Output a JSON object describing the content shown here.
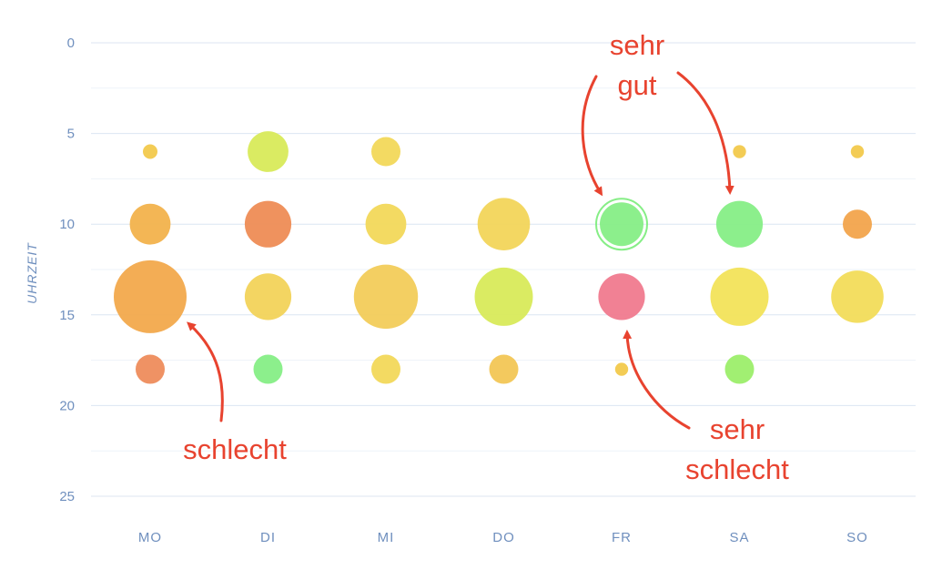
{
  "chart_data": {
    "type": "scatter",
    "subtype": "bubble",
    "title": "",
    "xlabel": "",
    "ylabel": "UHRZEIT",
    "categories": [
      "MO",
      "DI",
      "MI",
      "DO",
      "FR",
      "SA",
      "SO"
    ],
    "y_ticks": [
      "0",
      "5",
      "10",
      "15",
      "20",
      "25"
    ],
    "ylim": [
      0,
      25
    ],
    "y_inverted": true,
    "grid": true,
    "points": [
      {
        "day": "MO",
        "hour": 6,
        "size": 1.0,
        "color": "#f2c94c"
      },
      {
        "day": "MO",
        "hour": 10,
        "size": 2.8,
        "color": "#f2b24c"
      },
      {
        "day": "MO",
        "hour": 14,
        "size": 5.0,
        "color": "#f2a94c"
      },
      {
        "day": "MO",
        "hour": 18,
        "size": 2.0,
        "color": "#ee8c5c"
      },
      {
        "day": "DI",
        "hour": 6,
        "size": 2.8,
        "color": "#d8ea5a"
      },
      {
        "day": "DI",
        "hour": 10,
        "size": 3.2,
        "color": "#ee8c55"
      },
      {
        "day": "DI",
        "hour": 14,
        "size": 3.2,
        "color": "#f2d35a"
      },
      {
        "day": "DI",
        "hour": 18,
        "size": 2.0,
        "color": "#86ee86"
      },
      {
        "day": "MI",
        "hour": 6,
        "size": 2.0,
        "color": "#f2d85a"
      },
      {
        "day": "MI",
        "hour": 10,
        "size": 2.8,
        "color": "#f2d85a"
      },
      {
        "day": "MI",
        "hour": 14,
        "size": 4.4,
        "color": "#f2cc5a"
      },
      {
        "day": "MI",
        "hour": 18,
        "size": 2.0,
        "color": "#f2d85a"
      },
      {
        "day": "DO",
        "hour": 10,
        "size": 3.6,
        "color": "#f2d55a"
      },
      {
        "day": "DO",
        "hour": 14,
        "size": 4.0,
        "color": "#d8ea5a"
      },
      {
        "day": "DO",
        "hour": 18,
        "size": 2.0,
        "color": "#f2c655"
      },
      {
        "day": "FR",
        "hour": 10,
        "size": 3.0,
        "color": "#86ee86",
        "highlight": true
      },
      {
        "day": "FR",
        "hour": 14,
        "size": 3.2,
        "color": "#f07a8e"
      },
      {
        "day": "FR",
        "hour": 18,
        "size": 0.9,
        "color": "#f2c94c"
      },
      {
        "day": "SA",
        "hour": 6,
        "size": 0.9,
        "color": "#f2c94c"
      },
      {
        "day": "SA",
        "hour": 10,
        "size": 3.2,
        "color": "#86ee86"
      },
      {
        "day": "SA",
        "hour": 14,
        "size": 4.0,
        "color": "#f2e35a"
      },
      {
        "day": "SA",
        "hour": 18,
        "size": 2.0,
        "color": "#9cee6a"
      },
      {
        "day": "SO",
        "hour": 6,
        "size": 0.9,
        "color": "#f2c94c"
      },
      {
        "day": "SO",
        "hour": 10,
        "size": 2.0,
        "color": "#f2a44c"
      },
      {
        "day": "SO",
        "hour": 14,
        "size": 3.6,
        "color": "#f2dc5a"
      }
    ],
    "annotations": [
      {
        "label": "sehr gut",
        "lines": [
          "sehr",
          "gut"
        ],
        "targets": [
          {
            "day": "FR",
            "hour": 10
          },
          {
            "day": "SA",
            "hour": 10
          }
        ]
      },
      {
        "label": "schlecht",
        "lines": [
          "schlecht"
        ],
        "targets": [
          {
            "day": "MO",
            "hour": 14
          }
        ]
      },
      {
        "label": "sehr schlecht",
        "lines": [
          "sehr",
          "schlecht"
        ],
        "targets": [
          {
            "day": "FR",
            "hour": 14
          }
        ]
      }
    ]
  },
  "colors": {
    "grid_major": "#dce6f2",
    "grid_minor": "#eef3f9",
    "tick_text": "#6f8fbe",
    "annotation": "#e8432f"
  }
}
